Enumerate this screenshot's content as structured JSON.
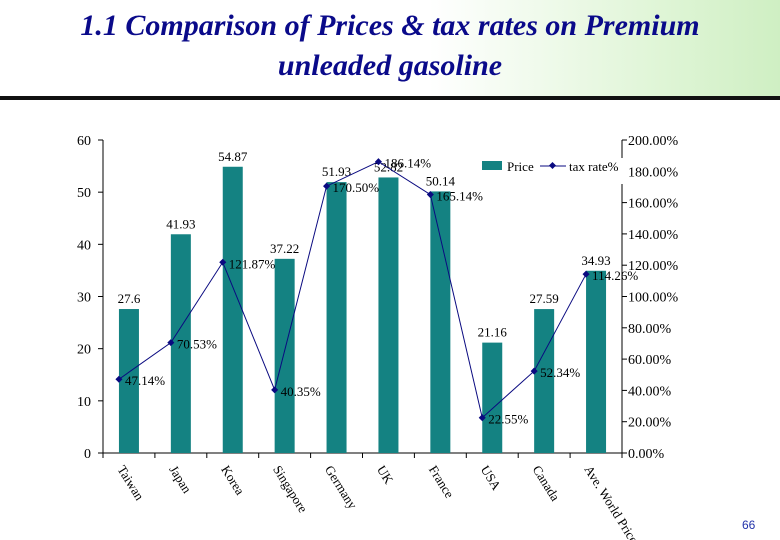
{
  "slide": {
    "title_line1": "1.1 Comparison of Prices & tax rates on Premium",
    "title_line2": "unleaded gasoline",
    "page_number": "66"
  },
  "colors": {
    "bar": "#148282",
    "line": "#0a0a80",
    "title": "#0a0a8a"
  },
  "chart_data": {
    "type": "bar",
    "categories": [
      "Taiwan",
      "Japan",
      "Korea",
      "Singapore",
      "Germany",
      "UK",
      "France",
      "USA",
      "Canada",
      "Ave. World Price"
    ],
    "series": [
      {
        "name": "Price",
        "type": "bar",
        "axis": "left",
        "values": [
          27.6,
          41.93,
          54.87,
          37.22,
          51.93,
          52.82,
          50.14,
          21.16,
          27.59,
          34.93
        ],
        "labels": [
          "27.6",
          "41.93",
          "54.87",
          "37.22",
          "51.93",
          "52.82",
          "50.14",
          "21.16",
          "27.59",
          "34.93"
        ]
      },
      {
        "name": "tax rate%",
        "type": "line",
        "axis": "right",
        "values": [
          47.14,
          70.53,
          121.87,
          40.35,
          170.5,
          186.14,
          165.14,
          22.55,
          52.34,
          114.26
        ],
        "labels": [
          "47.14%",
          "70.53%",
          "121.87%",
          "40.35%",
          "170.50%",
          "186.14%",
          "165.14%",
          "22.55%",
          "52.34%",
          "114.26%"
        ]
      }
    ],
    "y_left": {
      "min": 0,
      "max": 60,
      "ticks": [
        "0",
        "10",
        "20",
        "30",
        "40",
        "50",
        "60"
      ]
    },
    "y_right": {
      "min": 0,
      "max": 200,
      "ticks": [
        "0.00%",
        "20.00%",
        "40.00%",
        "60.00%",
        "80.00%",
        "100.00%",
        "120.00%",
        "140.00%",
        "160.00%",
        "180.00%",
        "200.00%"
      ]
    },
    "legend_position": "top-right",
    "grid": false
  }
}
